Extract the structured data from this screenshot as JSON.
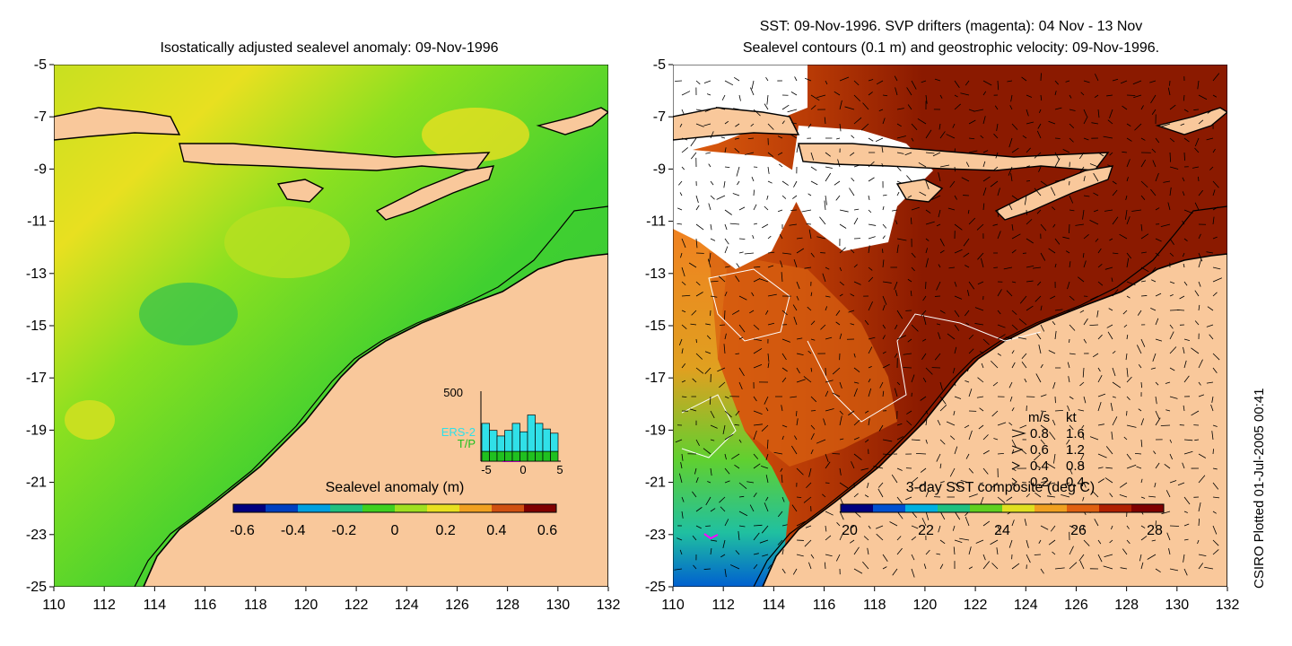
{
  "left_panel": {
    "title": "Isostatically adjusted sealevel anomaly: 09-Nov-1996",
    "x_ticks": [
      "110",
      "112",
      "114",
      "116",
      "118",
      "120",
      "122",
      "124",
      "126",
      "128",
      "130",
      "132"
    ],
    "y_ticks": [
      "-5",
      "-7",
      "-9",
      "-11",
      "-13",
      "-15",
      "-17",
      "-19",
      "-21",
      "-23",
      "-25"
    ],
    "colorbar": {
      "label": "Sealevel anomaly (m)",
      "ticks": [
        "-0.6",
        "-0.4",
        "-0.2",
        "0",
        "0.2",
        "0.4",
        "0.6"
      ],
      "colors": [
        "#00007f",
        "#0040c0",
        "#00a0e0",
        "#20c080",
        "#40d020",
        "#a0e020",
        "#e8e020",
        "#f0a020",
        "#d05010",
        "#800000"
      ]
    },
    "inset": {
      "ymax_label": "500",
      "x_ticks": [
        "-5",
        "0",
        "5"
      ],
      "series_a": "ERS-2",
      "series_b": "T/P",
      "bar_counts_a": [
        200,
        150,
        110,
        150,
        200,
        140,
        260,
        200,
        160,
        130
      ],
      "bar_counts_b": [
        70,
        70,
        70,
        70,
        70,
        70,
        70,
        70,
        70,
        70
      ],
      "ylim": [
        0,
        500
      ],
      "colors": {
        "a": "#30e0e8",
        "b": "#20c020",
        "window": "#ff00ff"
      }
    }
  },
  "right_panel": {
    "title_line1": "SST: 09-Nov-1996. SVP drifters (magenta): 04 Nov - 13 Nov",
    "title_line2": "Sealevel contours (0.1 m) and geostrophic velocity: 09-Nov-1996.",
    "x_ticks": [
      "110",
      "112",
      "114",
      "116",
      "118",
      "120",
      "122",
      "124",
      "126",
      "128",
      "130",
      "132"
    ],
    "y_ticks": [
      "-5",
      "-7",
      "-9",
      "-11",
      "-13",
      "-15",
      "-17",
      "-19",
      "-21",
      "-23",
      "-25"
    ],
    "colorbar": {
      "label": "3-day SST composite (deg C)",
      "ticks": [
        "20",
        "22",
        "24",
        "26",
        "28"
      ],
      "colors": [
        "#00007f",
        "#0050d0",
        "#00b0e0",
        "#20c080",
        "#60d020",
        "#e0e020",
        "#f0a020",
        "#e06010",
        "#b02000",
        "#800000"
      ]
    },
    "legend": {
      "header_ms": "m/s",
      "header_kt": "kt",
      "rows": [
        {
          "ms": "0.8",
          "kt": "1.6"
        },
        {
          "ms": "0.6",
          "kt": "1.2"
        },
        {
          "ms": "0.4",
          "kt": "0.8"
        },
        {
          "ms": "0.2",
          "kt": "0.4"
        }
      ]
    }
  },
  "map_extent": {
    "lon": [
      110,
      132
    ],
    "lat": [
      -25,
      -5
    ]
  },
  "credit": "CSIRO Plotted 01-Jul-2005 00:41",
  "colors": {
    "land": "#f9c89b",
    "coast": "#000000",
    "sst_warm": "#8b1a00",
    "no_data": "#ffffff"
  }
}
